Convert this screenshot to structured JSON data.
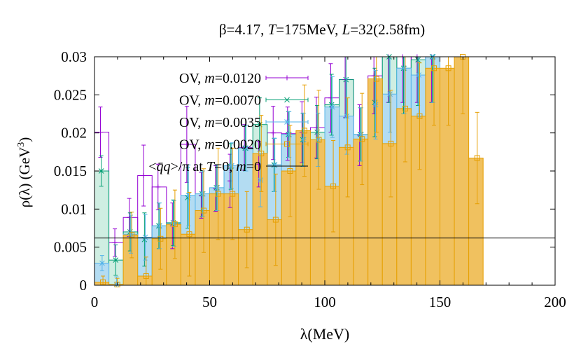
{
  "chart_data": {
    "type": "bar",
    "title": "β=4.17, T=175MeV, L=32(2.58fm)",
    "title_parts": [
      {
        "t": "β=4.17, ",
        "i": false
      },
      {
        "t": "T",
        "i": true
      },
      {
        "t": "=175MeV, ",
        "i": false
      },
      {
        "t": "L",
        "i": true
      },
      {
        "t": "=32(2.58fm)",
        "i": false
      }
    ],
    "xlabel": "λ(MeV)",
    "ylabel": "ρ(λ) (GeV",
    "ylabel_sup": "3",
    "ylabel_close": ")",
    "xlim": [
      0,
      200
    ],
    "ylim": [
      0,
      0.03
    ],
    "xticks": [
      {
        "v": 0,
        "label": "0"
      },
      {
        "v": 50,
        "label": "50"
      },
      {
        "v": 100,
        "label": "100"
      },
      {
        "v": 150,
        "label": "150"
      },
      {
        "v": 200,
        "label": "200"
      }
    ],
    "yticks": [
      {
        "v": 0,
        "label": "0"
      },
      {
        "v": 0.005,
        "label": "0.005"
      },
      {
        "v": 0.01,
        "label": "0.01"
      },
      {
        "v": 0.015,
        "label": "0.015"
      },
      {
        "v": 0.02,
        "label": "0.02"
      },
      {
        "v": 0.025,
        "label": "0.025"
      },
      {
        "v": 0.03,
        "label": "0.03"
      }
    ],
    "grid": false,
    "legend_position": "top-left",
    "bin_width": 6.25,
    "reference_line": {
      "value": 0.0062,
      "color": "#000000"
    },
    "series": [
      {
        "name": "OV, m=0.0120",
        "legend_parts": [
          {
            "t": "OV, ",
            "i": false
          },
          {
            "t": "m",
            "i": true
          },
          {
            "t": "=0.0120",
            "i": false
          }
        ],
        "color": "#9400d3",
        "fill": null,
        "marker": "plus",
        "values": [
          0.0201,
          0.0056,
          0.0089,
          0.0144,
          0.0129,
          0.0078,
          0.0185,
          0.0118,
          0.0127,
          0.0137,
          0.0181,
          0.0159,
          0.02,
          0.0199,
          0.0201,
          0.0207,
          0.0246,
          0.027,
          0.0197,
          0.0275,
          0.03,
          0.03,
          0.03,
          0.03
        ],
        "errors": [
          0.0033,
          0.0018,
          0.0025,
          0.004,
          0.003,
          0.003,
          0.005,
          0.003,
          0.003,
          0.0035,
          0.003,
          0.003,
          0.0035,
          0.0035,
          0.004,
          0.004,
          0.0045,
          0.005,
          0.004,
          0.005,
          0.006,
          0.006,
          0.006,
          0.006
        ]
      },
      {
        "name": "OV, m=0.0070",
        "legend_parts": [
          {
            "t": "OV, ",
            "i": false
          },
          {
            "t": "m",
            "i": true
          },
          {
            "t": "=0.0070",
            "i": false
          }
        ],
        "color": "#009e73",
        "fill": "#cfeee2",
        "marker": "cross",
        "values": [
          0.015,
          0.0033,
          0.007,
          0.006,
          0.0078,
          0.0082,
          0.0115,
          0.012,
          0.0128,
          0.0156,
          0.018,
          0.0211,
          0.0158,
          0.0198,
          0.0191,
          0.0201,
          0.0237,
          0.027,
          0.0198,
          0.024,
          0.03,
          0.0285,
          0.0296,
          0.03
        ],
        "errors": [
          0.002,
          0.002,
          0.0025,
          0.0035,
          0.003,
          0.003,
          0.004,
          0.003,
          0.003,
          0.003,
          0.003,
          0.0035,
          0.0035,
          0.003,
          0.0035,
          0.0035,
          0.004,
          0.005,
          0.0035,
          0.0045,
          0.006,
          0.006,
          0.006,
          0.006
        ]
      },
      {
        "name": "OV, m=0.0035",
        "legend_parts": [
          {
            "t": "OV, ",
            "i": false
          },
          {
            "t": "m",
            "i": true
          },
          {
            "t": "=0.0035",
            "i": false
          }
        ],
        "color": "#56b4e9",
        "fill": "#b3dcf2",
        "marker": "star",
        "values": [
          0.0029,
          0.0001,
          0.0067,
          0.0063,
          0.0078,
          0.0081,
          0.0118,
          0.012,
          0.0128,
          0.0157,
          0.018,
          0.0138,
          0.0158,
          0.0198,
          0.0191,
          0.0191,
          0.0234,
          0.0222,
          0.0198,
          0.0237,
          0.0251,
          0.0285,
          0.0276,
          0.03
        ],
        "errors": [
          0.001,
          0.001,
          0.0025,
          0.003,
          0.003,
          0.003,
          0.004,
          0.003,
          0.003,
          0.003,
          0.003,
          0.0035,
          0.0035,
          0.003,
          0.0035,
          0.0035,
          0.004,
          0.005,
          0.0035,
          0.0045,
          0.005,
          0.006,
          0.0055,
          0.006
        ]
      },
      {
        "name": "OV, m=0.0020",
        "legend_parts": [
          {
            "t": "OV, ",
            "i": false
          },
          {
            "t": "m",
            "i": true
          },
          {
            "t": "=0.0020",
            "i": false
          }
        ],
        "color": "#e69f00",
        "fill": "#f0c15f",
        "marker": "square",
        "values": [
          0.0004,
          0.0001,
          0.0066,
          0.0012,
          0.0061,
          0.008,
          0.0067,
          0.0098,
          0.012,
          0.012,
          0.0073,
          0.0173,
          0.0086,
          0.015,
          0.0203,
          0.0191,
          0.013,
          0.0181,
          0.0192,
          0.0271,
          0.0186,
          0.0232,
          0.0222,
          0.0285,
          0.0285,
          0.03,
          0.0167
        ],
        "errors": [
          0.0008,
          0.0008,
          0.003,
          0.0025,
          0.004,
          0.0045,
          0.0055,
          0.0055,
          0.006,
          0.006,
          0.005,
          0.005,
          0.006,
          0.006,
          0.006,
          0.0065,
          0.006,
          0.0065,
          0.006,
          0.007,
          0.007,
          0.007,
          0.007,
          0.0075,
          0.0075,
          0.0075,
          0.006
        ]
      }
    ],
    "reference_legend_parts": [
      {
        "t": "<",
        "i": false
      },
      {
        "t": "q̄q",
        "i": true
      },
      {
        "t": ">/π at ",
        "i": false
      },
      {
        "t": "T",
        "i": true
      },
      {
        "t": "=0, ",
        "i": false
      },
      {
        "t": "m",
        "i": true
      },
      {
        "t": "=0",
        "i": false
      }
    ]
  }
}
